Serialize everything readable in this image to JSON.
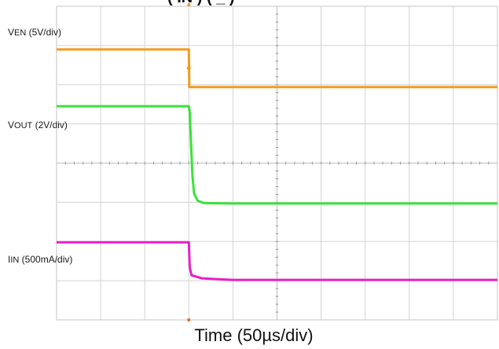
{
  "chart_data": {
    "type": "line",
    "title_fragment": "( IN   ) ( _   )",
    "xlabel": "Time (50µs/div)",
    "x_divisions": 10,
    "y_divisions": 8,
    "grid": true,
    "x_range": [
      0,
      10
    ],
    "y_range": [
      0,
      8
    ],
    "trigger_marker_x": 3,
    "series": [
      {
        "name": "VEN",
        "label_main": "V",
        "label_sub": "EN",
        "label_scale": " (5V/div)",
        "color": "#f39a1e",
        "points": [
          [
            0,
            6.9
          ],
          [
            3.0,
            6.9
          ],
          [
            3.01,
            5.94
          ],
          [
            10,
            5.94
          ]
        ]
      },
      {
        "name": "VOUT",
        "label_main": "V",
        "label_sub": "OUT",
        "label_scale": " (2V/div)",
        "color": "#39e339",
        "points": [
          [
            0,
            5.45
          ],
          [
            3.0,
            5.45
          ],
          [
            3.02,
            5.3
          ],
          [
            3.05,
            4.5
          ],
          [
            3.08,
            3.7
          ],
          [
            3.12,
            3.22
          ],
          [
            3.2,
            3.04
          ],
          [
            3.35,
            2.98
          ],
          [
            4.0,
            2.97
          ],
          [
            10,
            2.97
          ]
        ]
      },
      {
        "name": "IIN",
        "label_main": "I",
        "label_sub": "IN",
        "label_scale": " (500mA/div)",
        "color": "#e81ec8",
        "points": [
          [
            0,
            1.98
          ],
          [
            3.0,
            1.98
          ],
          [
            3.02,
            1.35
          ],
          [
            3.06,
            1.14
          ],
          [
            3.3,
            1.06
          ],
          [
            4.0,
            1.02
          ],
          [
            10,
            1.02
          ]
        ]
      }
    ]
  }
}
